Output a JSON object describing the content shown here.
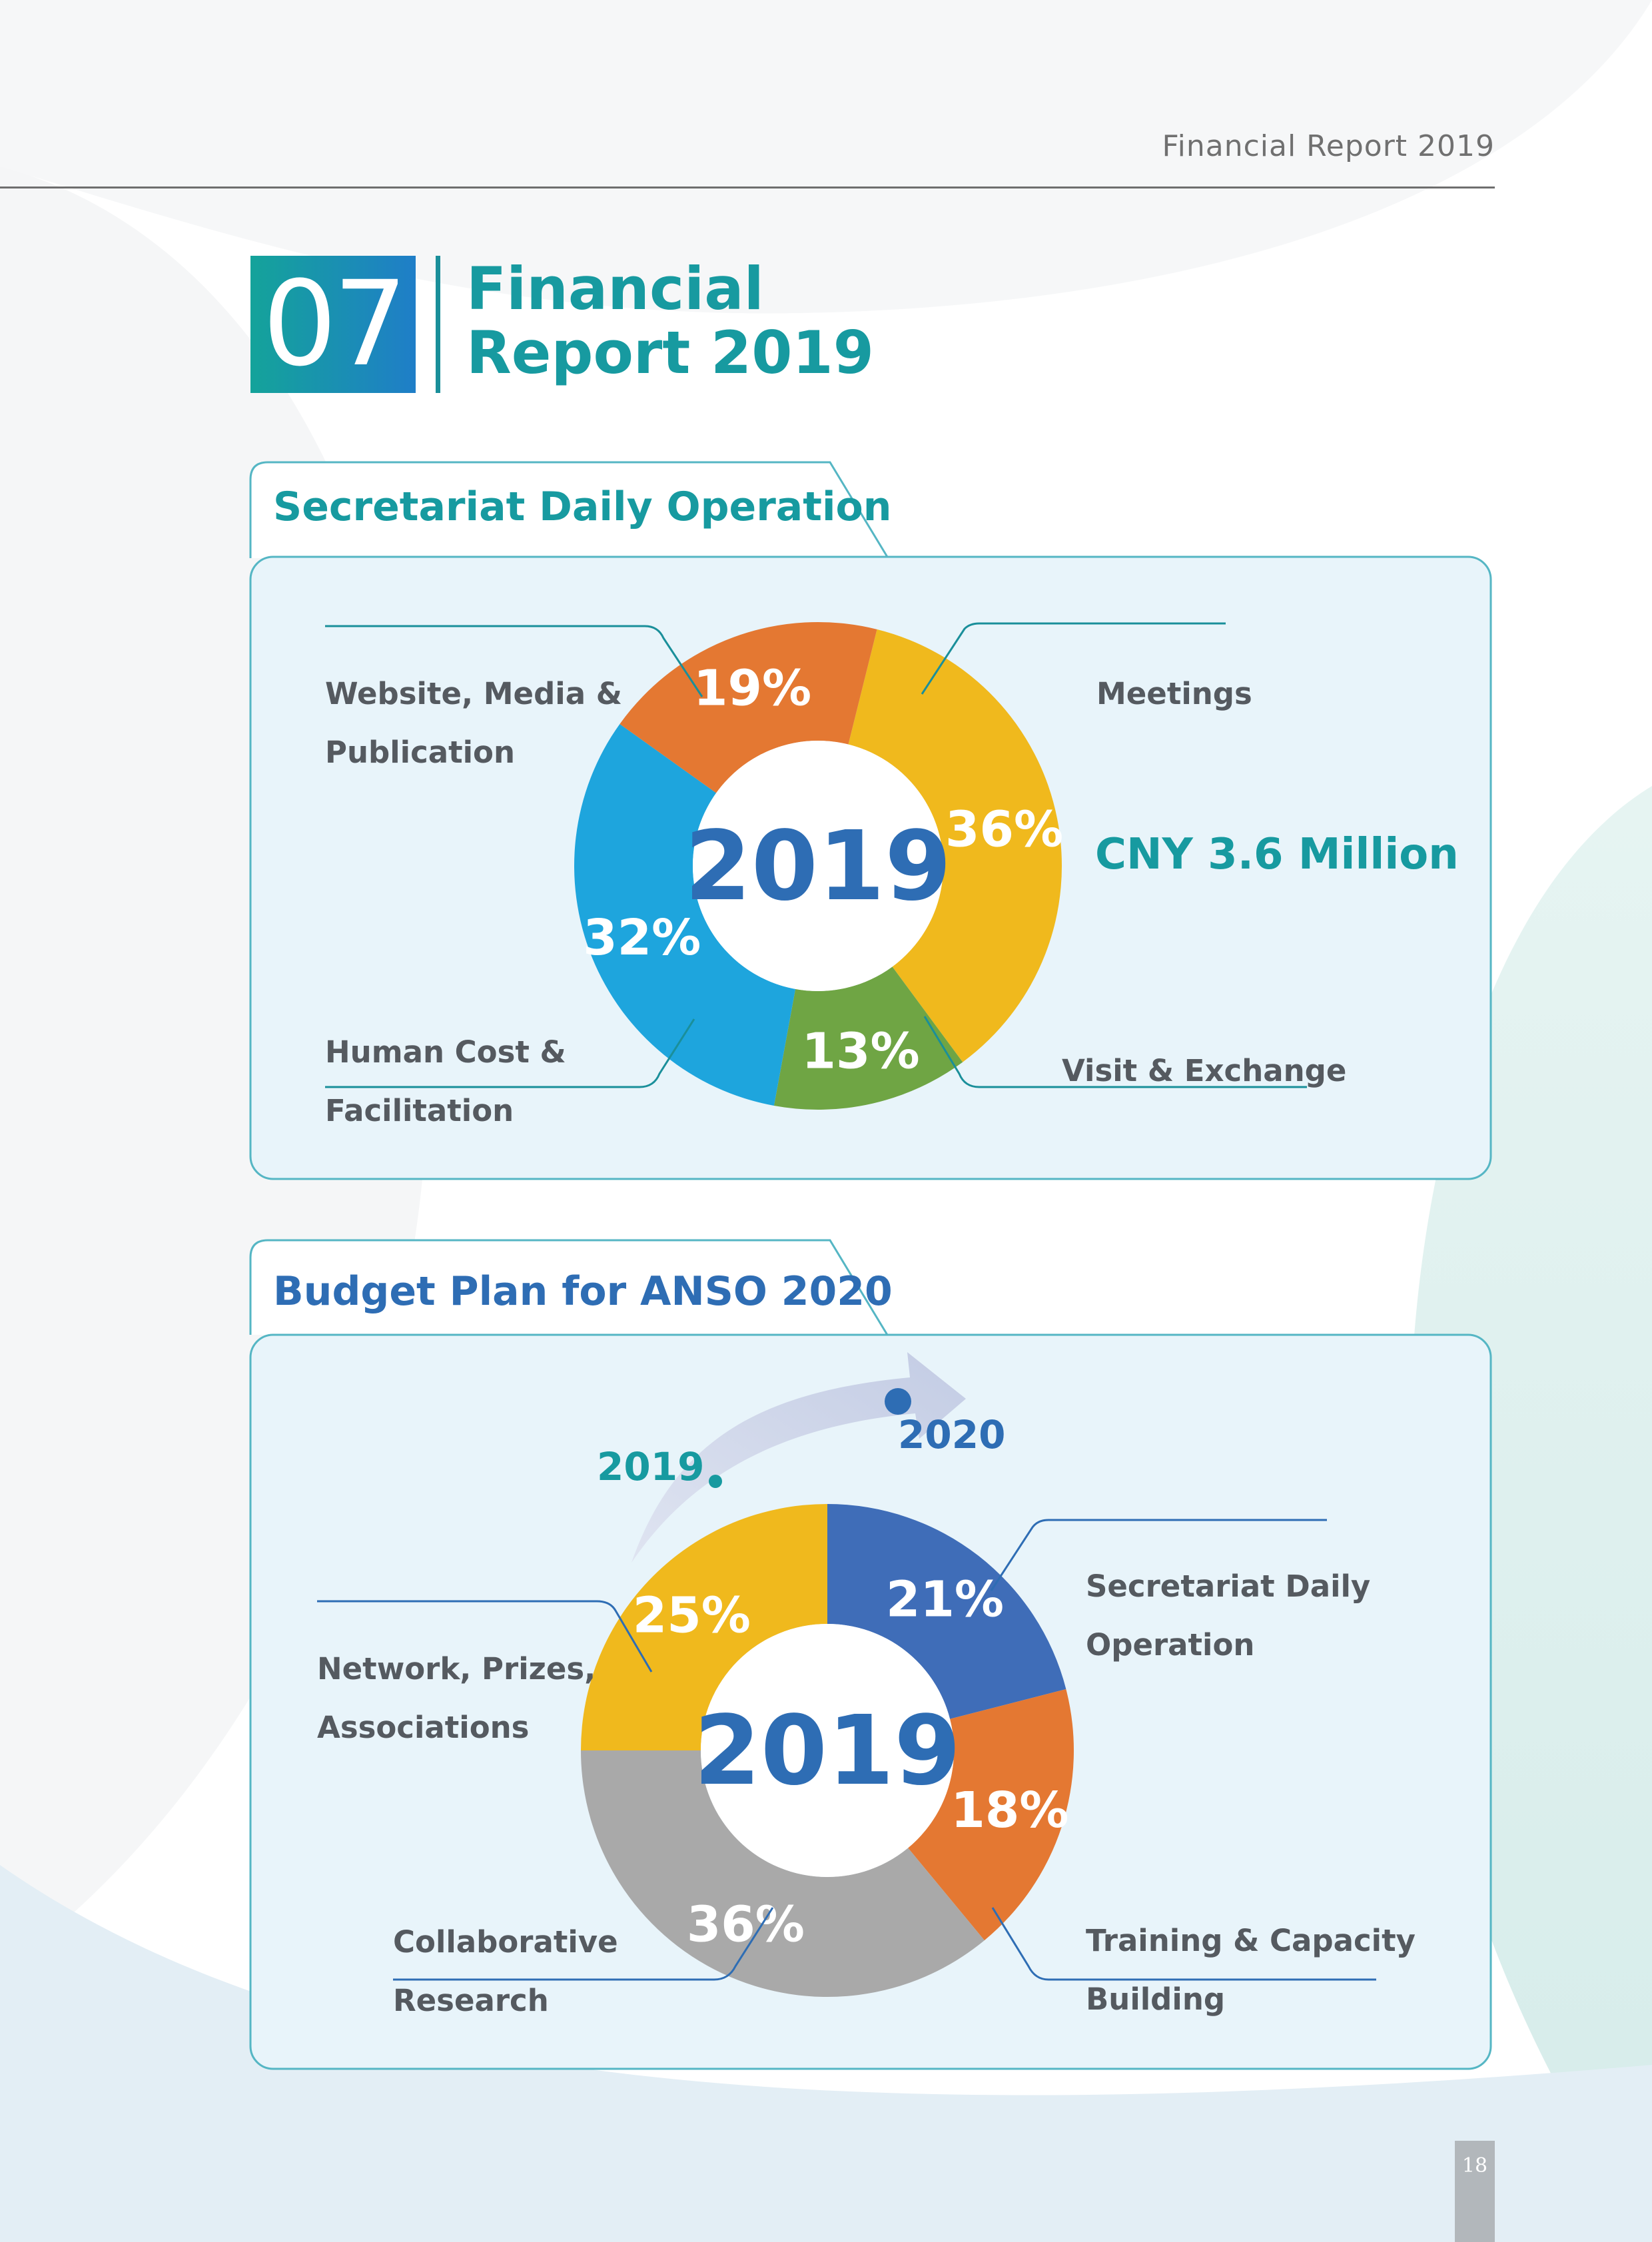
{
  "header": {
    "running_head": "Financial Report 2019",
    "chapter_number": "07",
    "chapter_title_line1": "Financial",
    "chapter_title_line2": "Report 2019"
  },
  "colors": {
    "teal": "#179aa0",
    "blue": "#2e6db4",
    "orange": "#e47832",
    "yellow": "#f0b91d",
    "green": "#6fa544",
    "sky": "#1ea5dd",
    "royal": "#3f6db8",
    "gray": "#a9a9a9",
    "panel": "#e8f4fa"
  },
  "sections": {
    "daily_operation": {
      "title": "Secretariat Daily Operation",
      "total_label": "CNY 3.6 Million"
    },
    "budget_plan": {
      "title": "Budget Plan for ANSO 2020",
      "arrow_from_year": "2019",
      "arrow_to_year": "2020"
    }
  },
  "chart_data": [
    {
      "type": "pie",
      "title": "Secretariat Daily Operation",
      "center_label": "2019",
      "categories": [
        "Meetings",
        "Visit & Exchange",
        "Human Cost & Facilitation",
        "Website, Media & Publication"
      ],
      "values": [
        36,
        13,
        32,
        19
      ],
      "value_labels": [
        "36%",
        "13%",
        "32%",
        "19%"
      ],
      "label_lines": [
        [
          "Meetings"
        ],
        [
          "Visit & Exchange"
        ],
        [
          "Human Cost &",
          "Facilitation"
        ],
        [
          "Website, Media &",
          "Publication"
        ]
      ],
      "colors": [
        "#f0b91d",
        "#6fa544",
        "#1ea5dd",
        "#e47832"
      ],
      "unit": "%"
    },
    {
      "type": "pie",
      "title": "Budget Plan for ANSO 2020",
      "center_label": "2019",
      "categories": [
        "Secretariat Daily Operation",
        "Training & Capacity Building",
        "Collaborative Research",
        "Network, Prizes, Associations"
      ],
      "values": [
        21,
        18,
        36,
        25
      ],
      "value_labels": [
        "21%",
        "18%",
        "36%",
        "25%"
      ],
      "label_lines": [
        [
          "Secretariat Daily",
          "Operation"
        ],
        [
          "Training & Capacity",
          "Building"
        ],
        [
          "Collaborative",
          "Research"
        ],
        [
          "Network, Prizes,",
          "Associations"
        ]
      ],
      "colors": [
        "#3f6db8",
        "#e47832",
        "#a9a9a9",
        "#f0b91d"
      ],
      "unit": "%"
    }
  ],
  "footer": {
    "page_number": "18"
  }
}
